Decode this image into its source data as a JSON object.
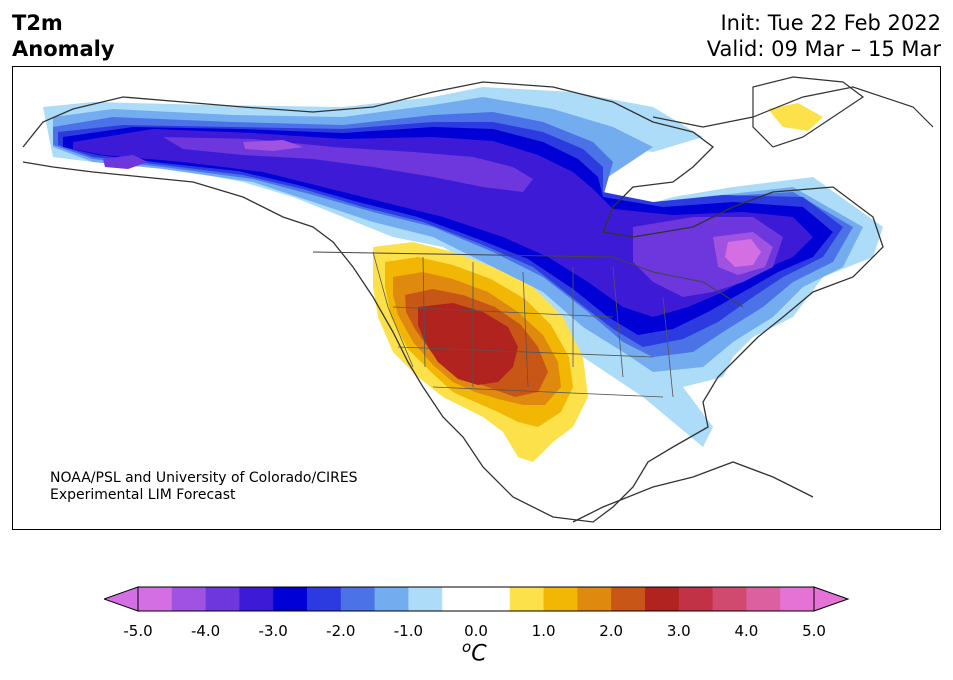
{
  "title": {
    "variable_line1": "T2m",
    "variable_line2": "Anomaly",
    "init": "Init: Tue 22 Feb 2022",
    "valid": "Valid: 09 Mar – 15 Mar"
  },
  "credit": {
    "line1": "NOAA/PSL and University of Colorado/CIRES",
    "line2": "Experimental LIM Forecast"
  },
  "colorbar": {
    "unit_base": "o",
    "unit_letter": "C",
    "tick_labels": [
      "-5.0",
      "-4.0",
      "-3.0",
      "-2.0",
      "-1.0",
      "0.0",
      "1.0",
      "2.0",
      "3.0",
      "4.0",
      "5.0"
    ],
    "colors": [
      "#d36fe3",
      "#a052e0",
      "#6d37dd",
      "#3d1bd6",
      "#0000d6",
      "#2b3be0",
      "#4b72e6",
      "#74acf0",
      "#acdcf8",
      "#ffffff",
      "#ffffff",
      "#fde14a",
      "#f2b704",
      "#df8a0e",
      "#c85616",
      "#b1231f",
      "#c23246",
      "#d04a70",
      "#dc5fa0",
      "#e573d6"
    ],
    "under_color": "#d36fe3",
    "over_color": "#e573d6"
  },
  "map": {
    "type": "temperature anomaly map",
    "region": "North America",
    "features": [
      "Strong cold anomaly across Alaska, Canada and northern/eastern US",
      "Warm anomaly over the US Southwest and northern Mexico",
      "Small warm anomaly over Greenland"
    ]
  }
}
